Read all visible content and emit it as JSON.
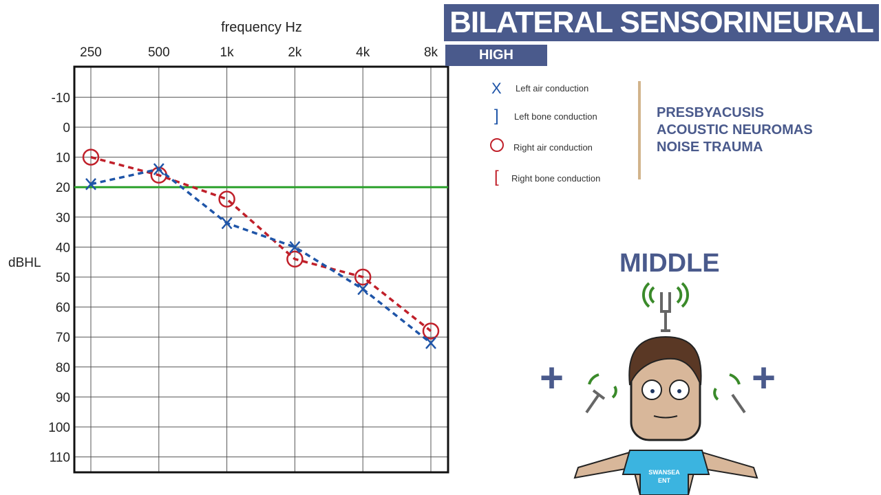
{
  "header": {
    "title": "BILATERAL SENSORINEURAL LOSS",
    "subtitle": "HIGH FREQUENCY"
  },
  "causes": [
    "PRESBYACUSIS",
    "ACOUSTIC NEUROMAS",
    "NOISE TRAUMA"
  ],
  "illustration": {
    "label": "MIDDLE",
    "plus_left": "+",
    "plus_right": "+",
    "shirt_text": [
      "SWANSEA",
      "ENT"
    ]
  },
  "chart_data": {
    "type": "line",
    "xlabel": "frequency Hz",
    "ylabel": "dBHL",
    "categories": [
      "250",
      "500",
      "1k",
      "2k",
      "4k",
      "8k"
    ],
    "yticks": [
      -10,
      0,
      10,
      20,
      30,
      40,
      50,
      60,
      70,
      80,
      90,
      100,
      110
    ],
    "ylim": [
      -20,
      115
    ],
    "y_inverted": true,
    "grid": true,
    "reference_line": {
      "value": 20,
      "color": "#2aa02a"
    },
    "legend": [
      {
        "symbol": "X",
        "label": "Left air conduction",
        "color": "#1f55a8"
      },
      {
        "symbol": "]",
        "label": "Left bone conduction",
        "color": "#1f55a8"
      },
      {
        "symbol": "O",
        "label": "Right air conduction",
        "color": "#c0202a"
      },
      {
        "symbol": "[",
        "label": "Right bone conduction",
        "color": "#c0202a"
      }
    ],
    "series": [
      {
        "name": "Right air conduction",
        "marker": "circle",
        "color": "#c0202a",
        "values": [
          10,
          16,
          24,
          44,
          50,
          68
        ]
      },
      {
        "name": "Left air conduction",
        "marker": "x",
        "color": "#1f55a8",
        "values": [
          19,
          14,
          32,
          40,
          54,
          72
        ]
      }
    ]
  }
}
